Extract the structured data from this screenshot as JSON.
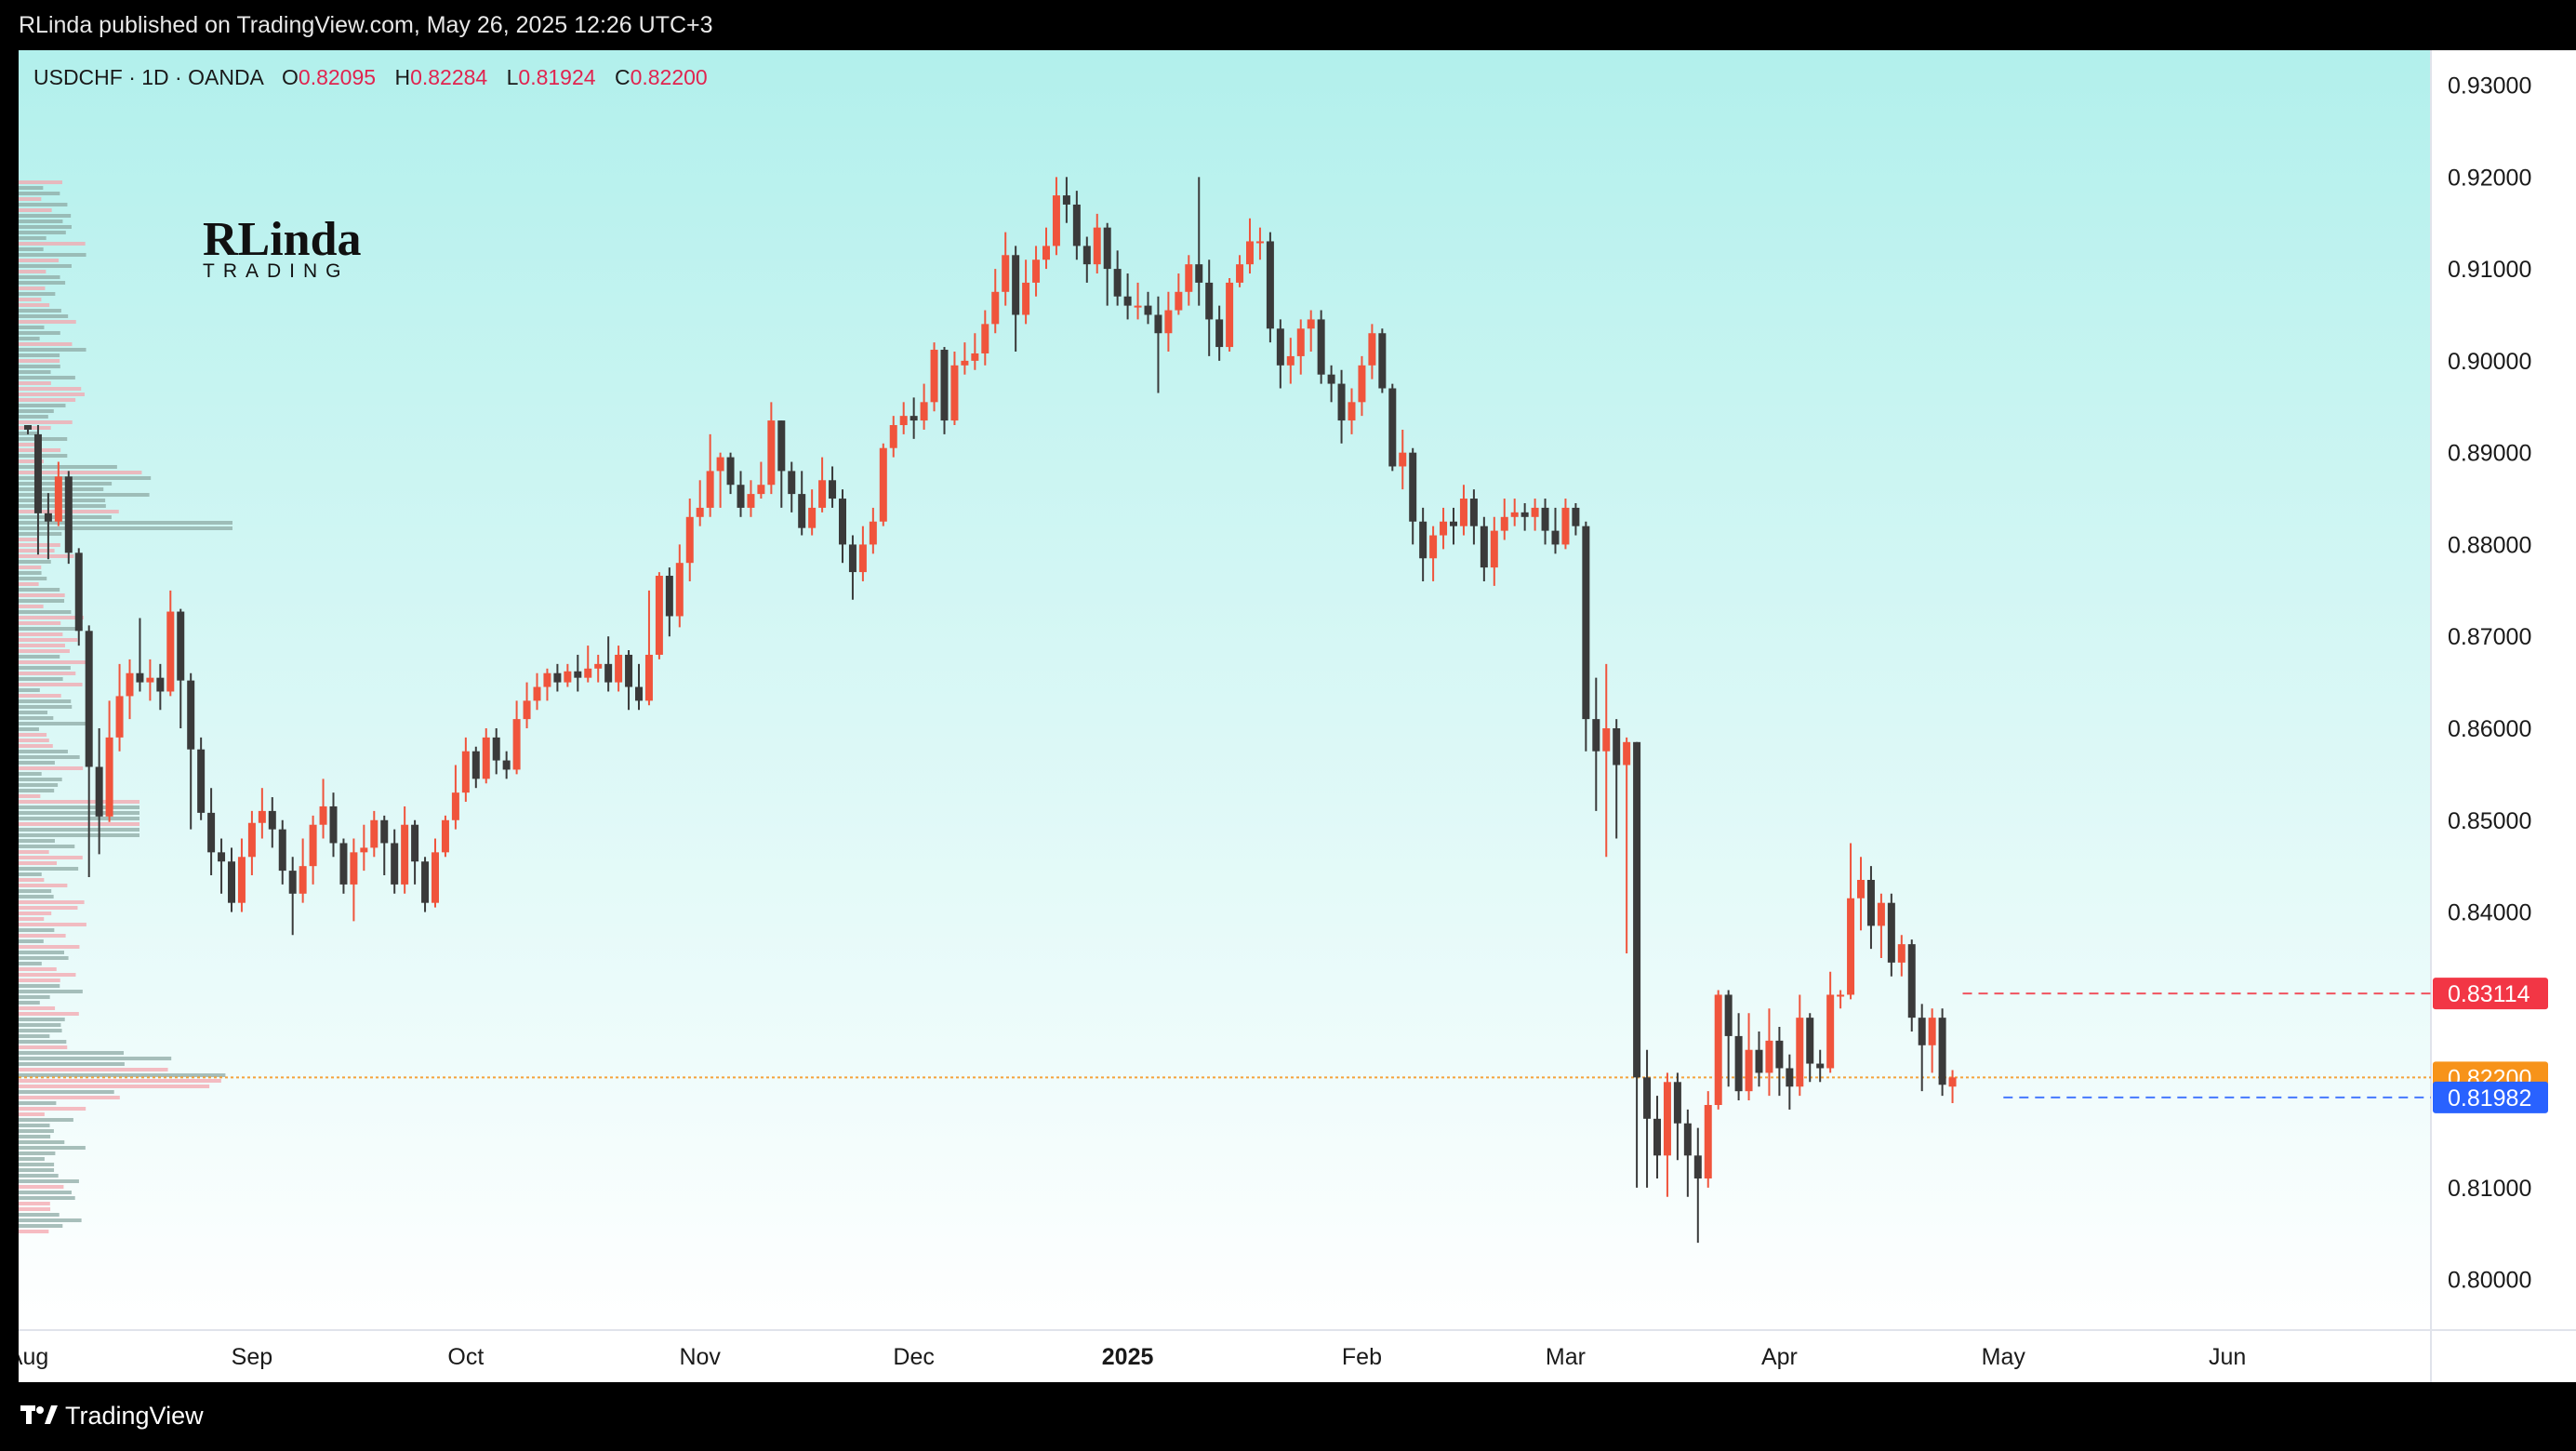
{
  "header": {
    "publish_line": "RLinda published on TradingView.com, May 26, 2025 12:26 UTC+3"
  },
  "legend": {
    "symbol": "USDCHF · 1D · OANDA",
    "open_label": "O",
    "open": "0.82095",
    "high_label": "H",
    "high": "0.82284",
    "low_label": "L",
    "low": "0.81924",
    "close_label": "C",
    "close": "0.82200"
  },
  "watermark": {
    "line1": "RLinda",
    "line2": "TRADING"
  },
  "footer": {
    "brand": "TradingView"
  },
  "colors": {
    "bg_top": "#b2f0ec",
    "bg_bottom": "#ffffff",
    "up": "#f0543c",
    "down": "#3a3a3a",
    "badge_red": "#f23645",
    "badge_orange": "#f7931a",
    "badge_blue": "#2962ff"
  },
  "chart_data": {
    "type": "candlestick",
    "symbol": "USDCHF",
    "timeframe": "1D",
    "ylim": [
      0.7945,
      0.9338
    ],
    "y_ticks": [
      "0.93000",
      "0.92000",
      "0.91000",
      "0.90000",
      "0.89000",
      "0.88000",
      "0.87000",
      "0.86000",
      "0.85000",
      "0.84000",
      "0.81000",
      "0.80000"
    ],
    "x_ticks": [
      {
        "label": "Aug",
        "i": 0
      },
      {
        "label": "Sep",
        "i": 22
      },
      {
        "label": "Oct",
        "i": 43
      },
      {
        "label": "Nov",
        "i": 66
      },
      {
        "label": "Dec",
        "i": 87
      },
      {
        "label": "2025",
        "i": 108
      },
      {
        "label": "Feb",
        "i": 131
      },
      {
        "label": "Mar",
        "i": 151
      },
      {
        "label": "Apr",
        "i": 172
      },
      {
        "label": "May",
        "i": 194
      },
      {
        "label": "Jun",
        "i": 216
      }
    ],
    "price_lines": [
      {
        "label": "0.83114",
        "value": 0.83114,
        "color": "#f23645",
        "start_i": 190
      },
      {
        "label": "0.82200",
        "value": 0.822,
        "color": "#f7931a",
        "start_i": 0
      },
      {
        "label": "0.81982",
        "value": 0.81982,
        "color": "#2962ff",
        "start_i": 194
      }
    ],
    "candles": [
      [
        0.893,
        0.8925,
        0.893,
        0.892
      ],
      [
        0.892,
        0.8834,
        0.893,
        0.8789
      ],
      [
        0.8834,
        0.8825,
        0.8856,
        0.8784
      ],
      [
        0.8825,
        0.8874,
        0.889,
        0.882
      ],
      [
        0.8874,
        0.8791,
        0.888,
        0.8779
      ],
      [
        0.8791,
        0.8706,
        0.8796,
        0.869
      ],
      [
        0.8706,
        0.8558,
        0.8712,
        0.8438
      ],
      [
        0.8558,
        0.8504,
        0.86,
        0.8463
      ],
      [
        0.8504,
        0.859,
        0.863,
        0.8498
      ],
      [
        0.859,
        0.8635,
        0.867,
        0.8575
      ],
      [
        0.8635,
        0.866,
        0.8675,
        0.861
      ],
      [
        0.866,
        0.865,
        0.872,
        0.864
      ],
      [
        0.865,
        0.8655,
        0.8675,
        0.863
      ],
      [
        0.8655,
        0.864,
        0.867,
        0.862
      ],
      [
        0.864,
        0.8727,
        0.875,
        0.8635
      ],
      [
        0.8727,
        0.8652,
        0.873,
        0.86
      ],
      [
        0.8652,
        0.8577,
        0.866,
        0.849
      ],
      [
        0.8577,
        0.8508,
        0.859,
        0.85
      ],
      [
        0.8508,
        0.8465,
        0.8535,
        0.844
      ],
      [
        0.8465,
        0.8455,
        0.848,
        0.842
      ],
      [
        0.8455,
        0.841,
        0.847,
        0.84
      ],
      [
        0.841,
        0.846,
        0.848,
        0.84
      ],
      [
        0.846,
        0.8497,
        0.851,
        0.844
      ],
      [
        0.8497,
        0.851,
        0.8535,
        0.848
      ],
      [
        0.851,
        0.849,
        0.8525,
        0.847
      ],
      [
        0.849,
        0.8445,
        0.85,
        0.843
      ],
      [
        0.8445,
        0.842,
        0.846,
        0.8375
      ],
      [
        0.842,
        0.845,
        0.848,
        0.841
      ],
      [
        0.845,
        0.8495,
        0.8505,
        0.843
      ],
      [
        0.8495,
        0.8515,
        0.8545,
        0.848
      ],
      [
        0.8515,
        0.8475,
        0.853,
        0.846
      ],
      [
        0.8475,
        0.843,
        0.848,
        0.842
      ],
      [
        0.843,
        0.8465,
        0.848,
        0.839
      ],
      [
        0.8465,
        0.847,
        0.8495,
        0.8445
      ],
      [
        0.847,
        0.85,
        0.851,
        0.846
      ],
      [
        0.85,
        0.8475,
        0.8505,
        0.844
      ],
      [
        0.8475,
        0.843,
        0.849,
        0.842
      ],
      [
        0.843,
        0.8495,
        0.8515,
        0.842
      ],
      [
        0.8495,
        0.8455,
        0.85,
        0.843
      ],
      [
        0.8455,
        0.841,
        0.846,
        0.84
      ],
      [
        0.841,
        0.8465,
        0.848,
        0.8405
      ],
      [
        0.8465,
        0.85,
        0.8505,
        0.846
      ],
      [
        0.85,
        0.853,
        0.856,
        0.849
      ],
      [
        0.853,
        0.8575,
        0.859,
        0.852
      ],
      [
        0.8575,
        0.8545,
        0.858,
        0.8535
      ],
      [
        0.8545,
        0.859,
        0.86,
        0.854
      ],
      [
        0.859,
        0.8565,
        0.86,
        0.855
      ],
      [
        0.8565,
        0.8555,
        0.8575,
        0.8545
      ],
      [
        0.8555,
        0.861,
        0.863,
        0.855
      ],
      [
        0.861,
        0.863,
        0.865,
        0.86
      ],
      [
        0.863,
        0.8645,
        0.866,
        0.862
      ],
      [
        0.8645,
        0.866,
        0.8665,
        0.863
      ],
      [
        0.866,
        0.865,
        0.867,
        0.864
      ],
      [
        0.865,
        0.8662,
        0.867,
        0.8645
      ],
      [
        0.8662,
        0.8655,
        0.868,
        0.864
      ],
      [
        0.8655,
        0.8665,
        0.869,
        0.865
      ],
      [
        0.8665,
        0.867,
        0.868,
        0.865
      ],
      [
        0.867,
        0.865,
        0.87,
        0.864
      ],
      [
        0.865,
        0.868,
        0.869,
        0.864
      ],
      [
        0.868,
        0.8645,
        0.8685,
        0.862
      ],
      [
        0.8645,
        0.863,
        0.867,
        0.862
      ],
      [
        0.863,
        0.868,
        0.875,
        0.8625
      ],
      [
        0.868,
        0.8766,
        0.877,
        0.8675
      ],
      [
        0.8766,
        0.8722,
        0.8775,
        0.87
      ],
      [
        0.8722,
        0.878,
        0.88,
        0.871
      ],
      [
        0.878,
        0.883,
        0.885,
        0.876
      ],
      [
        0.883,
        0.884,
        0.887,
        0.882
      ],
      [
        0.884,
        0.888,
        0.892,
        0.883
      ],
      [
        0.888,
        0.8895,
        0.89,
        0.884
      ],
      [
        0.8895,
        0.8865,
        0.89,
        0.8855
      ],
      [
        0.8865,
        0.884,
        0.888,
        0.883
      ],
      [
        0.884,
        0.8855,
        0.887,
        0.883
      ],
      [
        0.8855,
        0.8865,
        0.889,
        0.885
      ],
      [
        0.8865,
        0.8935,
        0.8955,
        0.8855
      ],
      [
        0.8935,
        0.888,
        0.8935,
        0.884
      ],
      [
        0.888,
        0.8855,
        0.889,
        0.8835
      ],
      [
        0.8855,
        0.8818,
        0.888,
        0.881
      ],
      [
        0.8818,
        0.884,
        0.886,
        0.881
      ],
      [
        0.884,
        0.887,
        0.8895,
        0.8835
      ],
      [
        0.887,
        0.885,
        0.8885,
        0.884
      ],
      [
        0.885,
        0.88,
        0.886,
        0.878
      ],
      [
        0.88,
        0.877,
        0.881,
        0.874
      ],
      [
        0.877,
        0.88,
        0.882,
        0.876
      ],
      [
        0.88,
        0.8825,
        0.884,
        0.879
      ],
      [
        0.8825,
        0.8905,
        0.891,
        0.882
      ],
      [
        0.8905,
        0.893,
        0.894,
        0.8895
      ],
      [
        0.893,
        0.894,
        0.8955,
        0.892
      ],
      [
        0.894,
        0.8935,
        0.896,
        0.8915
      ],
      [
        0.8935,
        0.8955,
        0.8975,
        0.8925
      ],
      [
        0.8955,
        0.9012,
        0.902,
        0.8945
      ],
      [
        0.9012,
        0.8935,
        0.9015,
        0.892
      ],
      [
        0.8935,
        0.8995,
        0.901,
        0.893
      ],
      [
        0.8995,
        0.9,
        0.902,
        0.8985
      ],
      [
        0.9,
        0.9008,
        0.903,
        0.899
      ],
      [
        0.9008,
        0.904,
        0.9055,
        0.8995
      ],
      [
        0.904,
        0.9075,
        0.91,
        0.903
      ],
      [
        0.9075,
        0.9115,
        0.914,
        0.906
      ],
      [
        0.9115,
        0.905,
        0.9125,
        0.901
      ],
      [
        0.905,
        0.9085,
        0.911,
        0.904
      ],
      [
        0.9085,
        0.911,
        0.9125,
        0.907
      ],
      [
        0.911,
        0.9125,
        0.9145,
        0.91
      ],
      [
        0.9125,
        0.918,
        0.92,
        0.9115
      ],
      [
        0.918,
        0.917,
        0.92,
        0.915
      ],
      [
        0.917,
        0.9125,
        0.9185,
        0.911
      ],
      [
        0.9125,
        0.9105,
        0.9135,
        0.9085
      ],
      [
        0.9105,
        0.9145,
        0.916,
        0.9095
      ],
      [
        0.9145,
        0.91,
        0.915,
        0.906
      ],
      [
        0.91,
        0.907,
        0.912,
        0.906
      ],
      [
        0.907,
        0.906,
        0.9095,
        0.9045
      ],
      [
        0.906,
        0.906,
        0.9085,
        0.9045
      ],
      [
        0.906,
        0.905,
        0.9075,
        0.904
      ],
      [
        0.905,
        0.903,
        0.907,
        0.8965
      ],
      [
        0.903,
        0.9055,
        0.9075,
        0.901
      ],
      [
        0.9055,
        0.9075,
        0.9095,
        0.905
      ],
      [
        0.9075,
        0.9105,
        0.9115,
        0.906
      ],
      [
        0.9105,
        0.9085,
        0.92,
        0.906
      ],
      [
        0.9085,
        0.9045,
        0.911,
        0.9005
      ],
      [
        0.9045,
        0.9015,
        0.906,
        0.9
      ],
      [
        0.9015,
        0.9085,
        0.909,
        0.901
      ],
      [
        0.9085,
        0.9105,
        0.9115,
        0.908
      ],
      [
        0.9105,
        0.913,
        0.9155,
        0.9095
      ],
      [
        0.913,
        0.913,
        0.9145,
        0.911
      ],
      [
        0.913,
        0.9035,
        0.914,
        0.902
      ],
      [
        0.9035,
        0.8995,
        0.9045,
        0.897
      ],
      [
        0.8995,
        0.9005,
        0.9025,
        0.8975
      ],
      [
        0.9005,
        0.9035,
        0.9045,
        0.8985
      ],
      [
        0.9035,
        0.9045,
        0.9055,
        0.901
      ],
      [
        0.9045,
        0.8985,
        0.9055,
        0.8975
      ],
      [
        0.8985,
        0.8975,
        0.8995,
        0.8955
      ],
      [
        0.8975,
        0.8935,
        0.899,
        0.891
      ],
      [
        0.8935,
        0.8955,
        0.897,
        0.892
      ],
      [
        0.8955,
        0.8995,
        0.9005,
        0.894
      ],
      [
        0.8995,
        0.903,
        0.904,
        0.898
      ],
      [
        0.903,
        0.897,
        0.9035,
        0.8965
      ],
      [
        0.897,
        0.8885,
        0.8975,
        0.888
      ],
      [
        0.8885,
        0.89,
        0.8925,
        0.886
      ],
      [
        0.89,
        0.8825,
        0.8905,
        0.88
      ],
      [
        0.8825,
        0.8785,
        0.884,
        0.876
      ],
      [
        0.8785,
        0.881,
        0.882,
        0.876
      ],
      [
        0.881,
        0.8825,
        0.884,
        0.8795
      ],
      [
        0.8825,
        0.882,
        0.884,
        0.88
      ],
      [
        0.882,
        0.885,
        0.8865,
        0.881
      ],
      [
        0.885,
        0.882,
        0.886,
        0.88
      ],
      [
        0.882,
        0.8775,
        0.883,
        0.876
      ],
      [
        0.8775,
        0.8815,
        0.883,
        0.8755
      ],
      [
        0.8815,
        0.883,
        0.885,
        0.8805
      ],
      [
        0.883,
        0.8835,
        0.885,
        0.882
      ],
      [
        0.8835,
        0.883,
        0.8845,
        0.8815
      ],
      [
        0.883,
        0.884,
        0.885,
        0.8815
      ],
      [
        0.884,
        0.8815,
        0.885,
        0.88
      ],
      [
        0.8815,
        0.88,
        0.884,
        0.879
      ],
      [
        0.88,
        0.884,
        0.885,
        0.8795
      ],
      [
        0.884,
        0.882,
        0.8845,
        0.881
      ],
      [
        0.882,
        0.861,
        0.8825,
        0.8575
      ],
      [
        0.861,
        0.8575,
        0.8655,
        0.851
      ],
      [
        0.8575,
        0.86,
        0.867,
        0.846
      ],
      [
        0.86,
        0.856,
        0.861,
        0.848
      ],
      [
        0.856,
        0.8585,
        0.859,
        0.8355
      ],
      [
        0.8585,
        0.822,
        0.8585,
        0.81
      ],
      [
        0.822,
        0.8175,
        0.825,
        0.81
      ],
      [
        0.8175,
        0.8135,
        0.82,
        0.811
      ],
      [
        0.8135,
        0.8215,
        0.8225,
        0.809
      ],
      [
        0.8215,
        0.817,
        0.8225,
        0.813
      ],
      [
        0.817,
        0.8135,
        0.8185,
        0.809
      ],
      [
        0.8135,
        0.811,
        0.8165,
        0.804
      ],
      [
        0.811,
        0.819,
        0.8205,
        0.81
      ],
      [
        0.819,
        0.831,
        0.8315,
        0.8185
      ],
      [
        0.831,
        0.8265,
        0.8315,
        0.821
      ],
      [
        0.8265,
        0.8205,
        0.829,
        0.8195
      ],
      [
        0.8205,
        0.825,
        0.829,
        0.8195
      ],
      [
        0.825,
        0.8225,
        0.827,
        0.821
      ],
      [
        0.8225,
        0.826,
        0.8295,
        0.82
      ],
      [
        0.826,
        0.823,
        0.8275,
        0.82
      ],
      [
        0.823,
        0.821,
        0.8245,
        0.8185
      ],
      [
        0.821,
        0.8285,
        0.831,
        0.82
      ],
      [
        0.8285,
        0.8235,
        0.829,
        0.8215
      ],
      [
        0.8235,
        0.823,
        0.825,
        0.8215
      ],
      [
        0.823,
        0.831,
        0.8335,
        0.8225
      ],
      [
        0.831,
        0.831,
        0.8315,
        0.8295
      ],
      [
        0.831,
        0.8415,
        0.8475,
        0.8305
      ],
      [
        0.8415,
        0.8435,
        0.846,
        0.838
      ],
      [
        0.8435,
        0.8385,
        0.845,
        0.836
      ],
      [
        0.8385,
        0.841,
        0.842,
        0.835
      ],
      [
        0.841,
        0.8345,
        0.842,
        0.833
      ],
      [
        0.8345,
        0.8365,
        0.8375,
        0.833
      ],
      [
        0.8365,
        0.8285,
        0.837,
        0.827
      ],
      [
        0.8285,
        0.8255,
        0.83,
        0.8205
      ],
      [
        0.8255,
        0.8285,
        0.8295,
        0.8225
      ],
      [
        0.8285,
        0.8212,
        0.8295,
        0.82
      ],
      [
        0.821,
        0.822,
        0.8228,
        0.8192
      ]
    ]
  }
}
